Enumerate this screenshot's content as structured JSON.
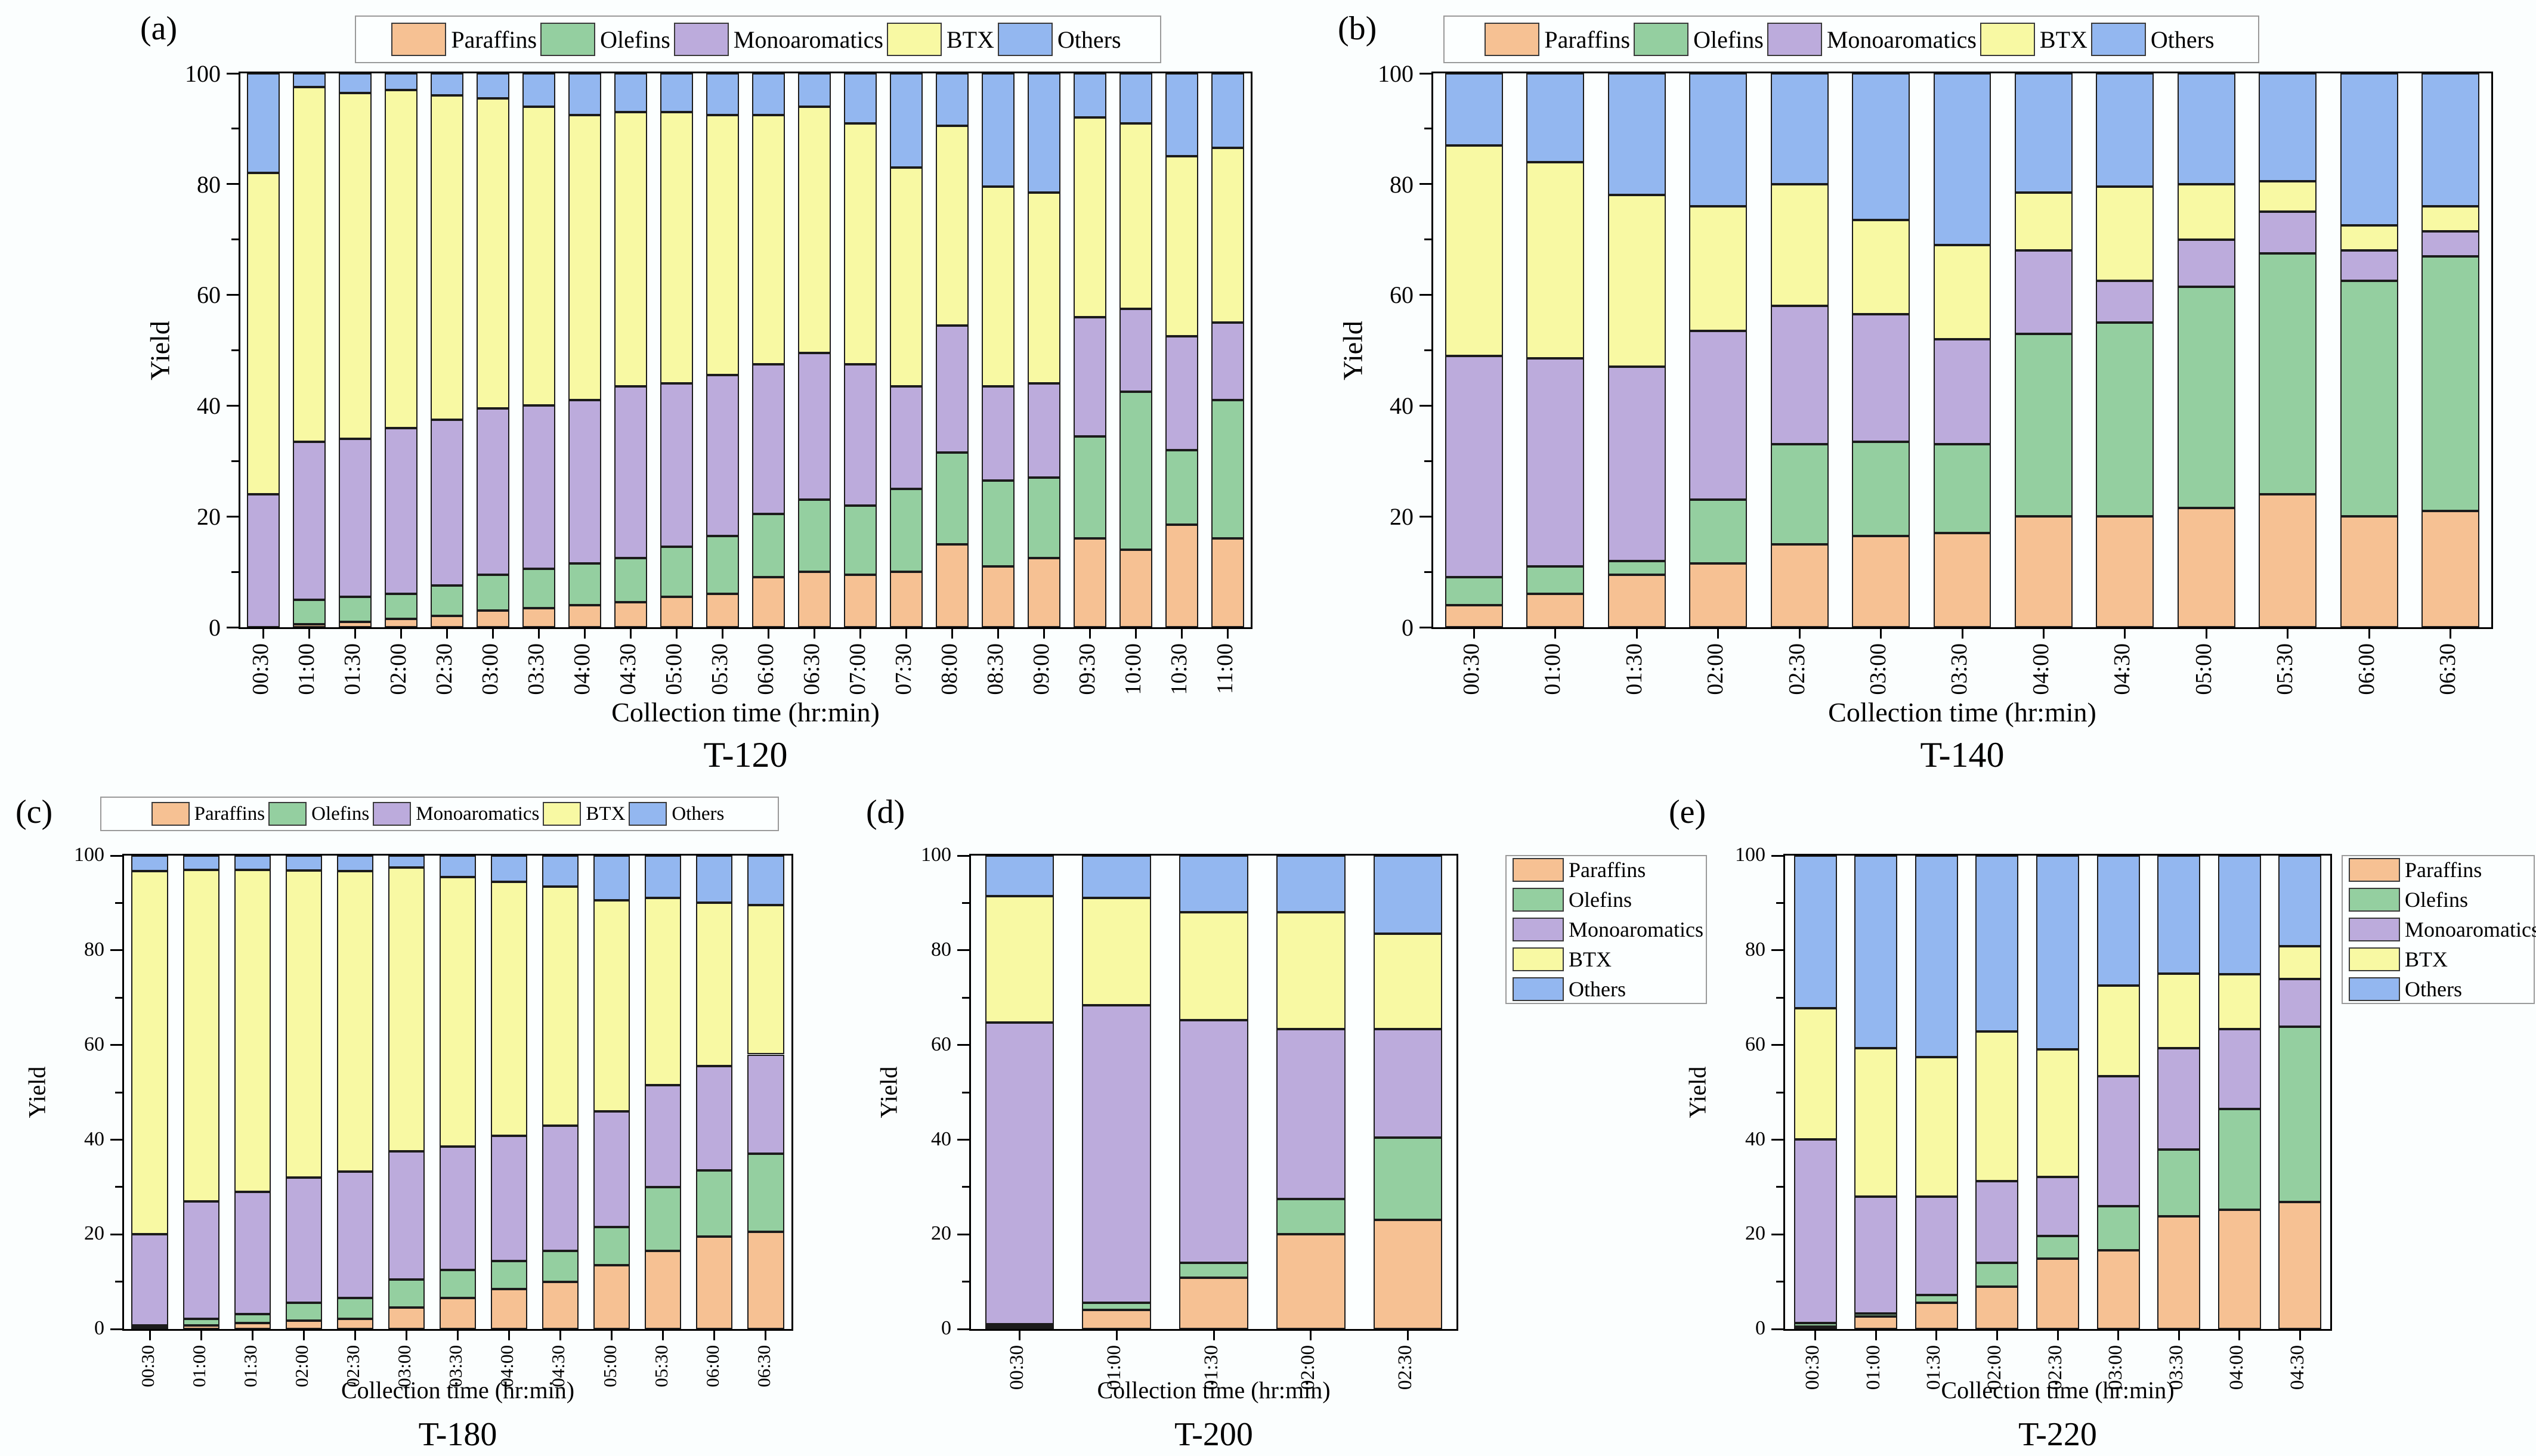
{
  "figure": {
    "background": "#FBFEFE",
    "series": [
      {
        "name": "Paraffins",
        "color": "#F6C193"
      },
      {
        "name": "Olefins",
        "color": "#94CFA0"
      },
      {
        "name": "Monoaromatics",
        "color": "#BCABDC"
      },
      {
        "name": "BTX",
        "color": "#F8F9A3"
      },
      {
        "name": "Others",
        "color": "#93B7F0"
      }
    ]
  },
  "chart_data": [
    {
      "id": "a",
      "type": "bar",
      "stacked": true,
      "panel_letter": "(a)",
      "title": "T-120",
      "xlabel": "Collection time (hr:min)",
      "ylabel": "Yield",
      "ylim": [
        0,
        100
      ],
      "yticks": [
        0,
        20,
        40,
        60,
        80,
        100
      ],
      "legend_position": "top",
      "grid": false,
      "categories": [
        "00:30",
        "01:00",
        "01:30",
        "02:00",
        "02:30",
        "03:00",
        "03:30",
        "04:00",
        "04:30",
        "05:00",
        "05:30",
        "06:00",
        "06:30",
        "07:00",
        "07:30",
        "08:00",
        "08:30",
        "09:00",
        "09:30",
        "10:00",
        "10:30",
        "11:00"
      ],
      "series": [
        {
          "name": "Paraffins",
          "values": [
            0,
            0.5,
            1,
            1.5,
            2,
            3,
            3.5,
            4,
            4.5,
            5.5,
            6,
            9,
            10,
            9.5,
            10,
            15,
            11,
            12.5,
            16,
            14,
            18.5,
            16
          ]
        },
        {
          "name": "Olefins",
          "values": [
            0,
            4.5,
            4.5,
            4.5,
            5.5,
            6.5,
            7,
            7.5,
            8,
            9,
            10.5,
            11.5,
            13,
            12.5,
            15,
            16.5,
            15.5,
            14.5,
            18.5,
            28.5,
            13.5,
            25
          ]
        },
        {
          "name": "Monoaromatics",
          "values": [
            24,
            28.5,
            28.5,
            30,
            30,
            30,
            29.5,
            29.5,
            31,
            29.5,
            29,
            27,
            26.5,
            25.5,
            18.5,
            23,
            17,
            17,
            21.5,
            15,
            20.5,
            14
          ]
        },
        {
          "name": "BTX",
          "values": [
            58,
            64,
            62.5,
            61,
            58.5,
            56,
            54,
            51.5,
            49.5,
            49,
            47,
            45,
            44.5,
            43.5,
            39.5,
            36,
            36,
            34.5,
            36,
            33.5,
            32.5,
            31.5
          ]
        },
        {
          "name": "Others",
          "values": [
            18,
            2.5,
            3.5,
            3,
            4,
            4.5,
            6,
            7.5,
            7,
            7,
            7.5,
            7.5,
            6,
            9,
            17,
            9.5,
            20.5,
            21.5,
            8,
            9,
            15,
            13.5
          ]
        }
      ]
    },
    {
      "id": "b",
      "type": "bar",
      "stacked": true,
      "panel_letter": "(b)",
      "title": "T-140",
      "xlabel": "Collection time (hr:min)",
      "ylabel": "Yield",
      "ylim": [
        0,
        100
      ],
      "yticks": [
        0,
        20,
        40,
        60,
        80,
        100
      ],
      "legend_position": "top",
      "grid": false,
      "categories": [
        "00:30",
        "01:00",
        "01:30",
        "02:00",
        "02:30",
        "03:00",
        "03:30",
        "04:00",
        "04:30",
        "05:00",
        "05:30",
        "06:00",
        "06:30"
      ],
      "series": [
        {
          "name": "Paraffins",
          "values": [
            4,
            6,
            9.5,
            11.5,
            15,
            16.5,
            17,
            20,
            20,
            21.5,
            24,
            20,
            21
          ]
        },
        {
          "name": "Olefins",
          "values": [
            5,
            5,
            2.5,
            11.5,
            18,
            17,
            16,
            33,
            35,
            40,
            43.5,
            42.5,
            46
          ]
        },
        {
          "name": "Monoaromatics",
          "values": [
            40,
            37.5,
            35,
            30.5,
            25,
            23,
            19,
            15,
            7.5,
            8.5,
            7.5,
            5.5,
            4.5
          ]
        },
        {
          "name": "BTX",
          "values": [
            38,
            35.5,
            31,
            22.5,
            22,
            17,
            17,
            10.5,
            17,
            10,
            5.5,
            4.5,
            4.5
          ]
        },
        {
          "name": "Others",
          "values": [
            13,
            16,
            22,
            24,
            20,
            26.5,
            31,
            21.5,
            20.5,
            20,
            19.5,
            27.5,
            24
          ]
        }
      ]
    },
    {
      "id": "c",
      "type": "bar",
      "stacked": true,
      "panel_letter": "(c)",
      "title": "T-180",
      "xlabel": "Collection time (hr:min)",
      "ylabel": "Yield",
      "ylim": [
        0,
        100
      ],
      "yticks": [
        0,
        20,
        40,
        60,
        80,
        100
      ],
      "legend_position": "top",
      "grid": false,
      "categories": [
        "00:30",
        "01:00",
        "01:30",
        "02:00",
        "02:30",
        "03:00",
        "03:30",
        "04:00",
        "04:30",
        "05:00",
        "05:30",
        "06:00",
        "06:30"
      ],
      "series": [
        {
          "name": "Paraffins",
          "values": [
            0.3,
            0.8,
            1.2,
            1.8,
            2.2,
            4.5,
            6.5,
            8.5,
            10,
            13.5,
            16.5,
            19.5,
            20.5
          ]
        },
        {
          "name": "Olefins",
          "values": [
            0.5,
            1.4,
            2,
            3.7,
            4.4,
            6,
            6,
            5.8,
            6.5,
            8,
            13.5,
            14,
            16.5
          ]
        },
        {
          "name": "Monoaromatics",
          "values": [
            19.2,
            24.8,
            25.8,
            26.5,
            26.7,
            27,
            26,
            26.5,
            26.5,
            24.5,
            21.5,
            22,
            21
          ]
        },
        {
          "name": "BTX",
          "values": [
            76.7,
            70,
            68,
            64.8,
            63.4,
            60,
            57,
            53.7,
            50.5,
            44.5,
            39.5,
            34.5,
            31.5
          ]
        },
        {
          "name": "Others",
          "values": [
            3.3,
            3,
            3,
            3.2,
            3.3,
            2.5,
            4.5,
            5.5,
            6.5,
            9.5,
            9,
            10,
            10.5
          ]
        }
      ]
    },
    {
      "id": "d",
      "type": "bar",
      "stacked": true,
      "panel_letter": "(d)",
      "title": "T-200",
      "xlabel": "Collection time (hr:min)",
      "ylabel": "Yield",
      "ylim": [
        0,
        100
      ],
      "yticks": [
        0,
        20,
        40,
        60,
        80,
        100
      ],
      "legend_position": "right",
      "grid": false,
      "categories": [
        "00:30",
        "01:00",
        "01:30",
        "02:00",
        "02:30"
      ],
      "series": [
        {
          "name": "Paraffins",
          "values": [
            0.5,
            4,
            10.8,
            20,
            23
          ]
        },
        {
          "name": "Olefins",
          "values": [
            0.5,
            1.6,
            3.2,
            7.4,
            17.4
          ]
        },
        {
          "name": "Monoaromatics",
          "values": [
            63.8,
            62.8,
            51.2,
            36,
            23
          ]
        },
        {
          "name": "BTX",
          "values": [
            26.7,
            22.6,
            22.8,
            24.6,
            20.1
          ]
        },
        {
          "name": "Others",
          "values": [
            8.5,
            9,
            12,
            12,
            16.5
          ]
        }
      ]
    },
    {
      "id": "e",
      "type": "bar",
      "stacked": true,
      "panel_letter": "(e)",
      "title": "T-220",
      "xlabel": "Collection time (hr:min)",
      "ylabel": "Yield",
      "ylim": [
        0,
        100
      ],
      "yticks": [
        0,
        20,
        40,
        60,
        80,
        100
      ],
      "legend_position": "right",
      "grid": false,
      "categories": [
        "00:30",
        "01:00",
        "01:30",
        "02:00",
        "02:30",
        "03:00",
        "03:30",
        "04:00",
        "04:30"
      ],
      "series": [
        {
          "name": "Paraffins",
          "values": [
            0.5,
            2.6,
            5.5,
            9,
            14.9,
            16.6,
            23.8,
            25.2,
            26.8
          ]
        },
        {
          "name": "Olefins",
          "values": [
            0.7,
            0.7,
            1.7,
            5,
            4.8,
            9.3,
            14.1,
            21.3,
            37
          ]
        },
        {
          "name": "Monoaromatics",
          "values": [
            38.8,
            24.7,
            20.8,
            17.2,
            12.4,
            27.5,
            21.4,
            16.8,
            10.1
          ]
        },
        {
          "name": "BTX",
          "values": [
            27.7,
            31.3,
            29.4,
            31.6,
            27,
            19.2,
            15.8,
            11.6,
            6.9
          ]
        },
        {
          "name": "Others",
          "values": [
            32.3,
            40.7,
            42.6,
            37.2,
            40.9,
            27.4,
            24.9,
            25.1,
            19.2
          ]
        }
      ]
    }
  ]
}
